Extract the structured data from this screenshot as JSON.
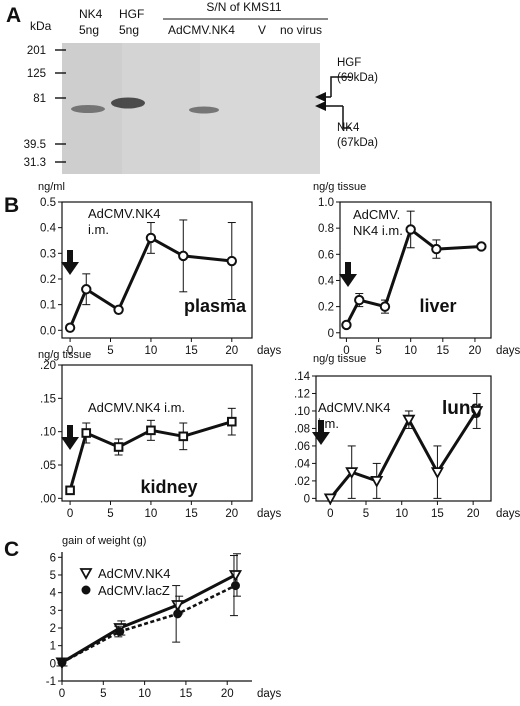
{
  "panels": {
    "A": {
      "letter": "A",
      "kda_label": "kDa",
      "markers": [
        "201",
        "125",
        "81",
        "39.5",
        "31.3"
      ],
      "lanes": [
        {
          "name": "NK4",
          "amount": "5ng"
        },
        {
          "name": "HGF",
          "amount": "5ng"
        }
      ],
      "group_header": "S/N of KMS11",
      "group_lanes": [
        "AdCMV.NK4",
        "V",
        "no virus"
      ],
      "arrow_labels": [
        {
          "name": "HGF",
          "size": "(69kDa)"
        },
        {
          "name": "NK4",
          "size": "(67kDa)"
        }
      ]
    },
    "B": {
      "letter": "B"
    },
    "C": {
      "letter": "C"
    }
  },
  "chart_data": [
    {
      "type": "line",
      "panel": "B",
      "title": "plasma",
      "ylabel": "ng/ml",
      "annotation": [
        "AdCMV.NK4",
        "i.m."
      ],
      "marker": "circle",
      "x": [
        0,
        2,
        6,
        10,
        14,
        20
      ],
      "y": [
        0.01,
        0.16,
        0.08,
        0.36,
        0.29,
        0.27
      ],
      "err": [
        0.005,
        0.06,
        0.01,
        0.06,
        0.14,
        0.15
      ],
      "xlim": [
        -1,
        22.5
      ],
      "ylim": [
        -0.03,
        0.5
      ],
      "xticks": [
        "0",
        "5",
        "10",
        "15",
        "20"
      ],
      "xtick_values": [
        0,
        5,
        10,
        15,
        20
      ],
      "yticks": [
        "0.0",
        "0.1",
        "0.2",
        "0.3",
        "0.4",
        "0.5"
      ],
      "ytick_values": [
        0,
        0.1,
        0.2,
        0.3,
        0.4,
        0.5
      ],
      "xunit": "days"
    },
    {
      "type": "line",
      "panel": "B",
      "title": "liver",
      "ylabel": "ng/g tissue",
      "annotation": [
        "AdCMV.",
        "NK4 i.m."
      ],
      "marker": "circle",
      "x": [
        0,
        2,
        6,
        10,
        14,
        21
      ],
      "y": [
        0.06,
        0.25,
        0.2,
        0.79,
        0.64,
        0.66
      ],
      "err": [
        0.02,
        0.05,
        0.05,
        0.14,
        0.07,
        0.01
      ],
      "xlim": [
        -1,
        22.5
      ],
      "ylim": [
        -0.04,
        1.0
      ],
      "xticks": [
        "0",
        "5",
        "10",
        "15",
        "20"
      ],
      "xtick_values": [
        0,
        5,
        10,
        15,
        20
      ],
      "yticks": [
        "0",
        "0.2",
        "0.4",
        "0.6",
        "0.8",
        "1.0"
      ],
      "ytick_values": [
        0,
        0.2,
        0.4,
        0.6,
        0.8,
        1.0
      ],
      "xunit": "days"
    },
    {
      "type": "line",
      "panel": "B",
      "title": "kidney",
      "ylabel": "ng/g tissue",
      "annotation": [
        "AdCMV.NK4 i.m."
      ],
      "marker": "square",
      "x": [
        0,
        2,
        6,
        10,
        14,
        20
      ],
      "y": [
        0.012,
        0.098,
        0.077,
        0.102,
        0.093,
        0.115
      ],
      "err": [
        0.005,
        0.015,
        0.012,
        0.015,
        0.02,
        0.02
      ],
      "xlim": [
        -1,
        22.5
      ],
      "ylim": [
        -0.004,
        0.2
      ],
      "xticks": [
        "0",
        "5",
        "10",
        "15",
        "20"
      ],
      "xtick_values": [
        0,
        5,
        10,
        15,
        20
      ],
      "yticks": [
        ".00",
        ".05",
        ".10",
        ".15",
        ".20"
      ],
      "ytick_values": [
        0,
        0.05,
        0.1,
        0.15,
        0.2
      ],
      "xunit": "days"
    },
    {
      "type": "line",
      "panel": "B",
      "title": "lung",
      "ylabel": "ng/g tissue",
      "annotation": [
        "AdCMV.NK4",
        "i.m."
      ],
      "marker": "triangle-down",
      "x": [
        0,
        3,
        6.5,
        11,
        15,
        20.5
      ],
      "y": [
        0.0,
        0.03,
        0.02,
        0.09,
        0.03,
        0.1
      ],
      "err": [
        0.0,
        0.03,
        0.02,
        0.01,
        0.03,
        0.02
      ],
      "xlim": [
        -2,
        22.5
      ],
      "ylim": [
        -0.003,
        0.14
      ],
      "xticks": [
        "0",
        "5",
        "10",
        "15",
        "20"
      ],
      "xtick_values": [
        0,
        5,
        10,
        15,
        20
      ],
      "yticks": [
        "0",
        ".02",
        ".04",
        ".06",
        ".08",
        ".10",
        ".12",
        ".14"
      ],
      "ytick_values": [
        0,
        0.02,
        0.04,
        0.06,
        0.08,
        0.1,
        0.12,
        0.14
      ],
      "xunit": "days"
    },
    {
      "type": "line",
      "panel": "C",
      "ylabel": "gain of weight (g)",
      "xlim": [
        0,
        23
      ],
      "ylim": [
        -1,
        6.3
      ],
      "xticks": [
        "0",
        "5",
        "10",
        "15",
        "20"
      ],
      "xtick_values": [
        0,
        5,
        10,
        15,
        20
      ],
      "yticks": [
        "-1",
        "0",
        "1",
        "2",
        "3",
        "4",
        "5",
        "6"
      ],
      "ytick_values": [
        -1,
        0,
        1,
        2,
        3,
        4,
        5,
        6
      ],
      "xunit": "days",
      "x": [
        0,
        7,
        14,
        21
      ],
      "series": [
        {
          "name": "AdCMV.NK4",
          "marker": "triangle-down",
          "dash": false,
          "y": [
            0.05,
            2.0,
            3.3,
            5.0
          ],
          "err": [
            0.2,
            0.4,
            0.5,
            1.2
          ]
        },
        {
          "name": "AdCMV.lacZ",
          "marker": "circle-filled",
          "dash": true,
          "y": [
            0.05,
            1.8,
            2.8,
            4.4
          ],
          "err": [
            0.2,
            0.3,
            1.6,
            1.7
          ]
        }
      ]
    }
  ]
}
